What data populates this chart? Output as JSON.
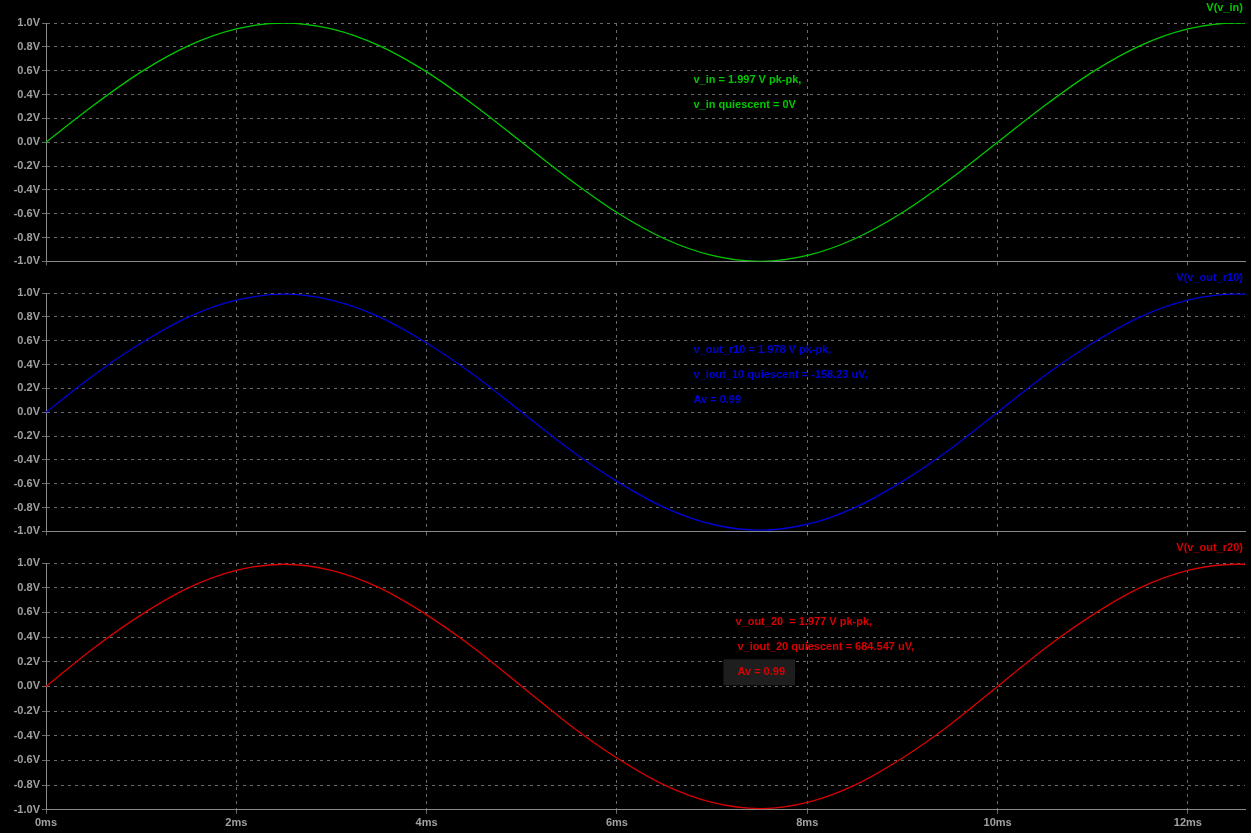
{
  "chart_data": [
    {
      "type": "line",
      "x": [
        0,
        0.5,
        1,
        1.5,
        2,
        2.5,
        3,
        3.5,
        4,
        4.5,
        5,
        5.5,
        6,
        6.5,
        7,
        7.5,
        8,
        8.5,
        9,
        9.5,
        10,
        10.5,
        11,
        11.5,
        12,
        12.5,
        12.6
      ],
      "series": [
        {
          "name": "V(v_in)",
          "color": "#00c800",
          "values": [
            0,
            0.31,
            0.59,
            0.81,
            0.95,
            1.0,
            0.95,
            0.81,
            0.59,
            0.31,
            0,
            -0.31,
            -0.59,
            -0.81,
            -0.95,
            -1.0,
            -0.95,
            -0.81,
            -0.59,
            -0.31,
            0,
            0.31,
            0.59,
            0.81,
            0.95,
            1.0,
            1.0
          ]
        }
      ],
      "xlim": [
        0,
        12.6
      ],
      "xticks": [
        {
          "value": 0,
          "label": null
        },
        {
          "value": 2,
          "label": null
        },
        {
          "value": 4,
          "label": null
        },
        {
          "value": 6,
          "label": null
        },
        {
          "value": 8,
          "label": null
        },
        {
          "value": 10,
          "label": null
        },
        {
          "value": 12,
          "label": null
        }
      ],
      "ylim": [
        -1,
        1
      ],
      "yticks": [
        {
          "value": -1,
          "label": "-1.0V"
        },
        {
          "value": -0.8,
          "label": "-0.8V"
        },
        {
          "value": -0.6,
          "label": "-0.6V"
        },
        {
          "value": -0.4,
          "label": "-0.4V"
        },
        {
          "value": -0.2,
          "label": "-0.2V"
        },
        {
          "value": 0,
          "label": "0.0V"
        },
        {
          "value": 0.2,
          "label": "0.2V"
        },
        {
          "value": 0.4,
          "label": "0.4V"
        },
        {
          "value": 0.6,
          "label": "0.6V"
        },
        {
          "value": 0.8,
          "label": "0.8V"
        },
        {
          "value": 1,
          "label": "1.0V"
        }
      ],
      "grid": true,
      "legend": "top right",
      "tick_labels": "y",
      "line_style": "solid",
      "marker": "none",
      "annotations": [
        "v_in = 1.997 V pk-pk,",
        "v_in quiescent = 0V"
      ]
    },
    {
      "type": "line",
      "x": [
        0,
        0.5,
        1,
        1.5,
        2,
        2.5,
        3,
        3.5,
        4,
        4.5,
        5,
        5.5,
        6,
        6.5,
        7,
        7.5,
        8,
        8.5,
        9,
        9.5,
        10,
        10.5,
        11,
        11.5,
        12,
        12.5,
        12.6
      ],
      "series": [
        {
          "name": "V(v_out_r10)",
          "color": "#0000d8",
          "values": [
            0,
            0.31,
            0.58,
            0.8,
            0.94,
            0.99,
            0.94,
            0.8,
            0.58,
            0.31,
            0,
            -0.31,
            -0.58,
            -0.8,
            -0.94,
            -0.99,
            -0.94,
            -0.8,
            -0.58,
            -0.31,
            0,
            0.31,
            0.58,
            0.8,
            0.94,
            0.99,
            0.99
          ]
        }
      ],
      "xlim": [
        0,
        12.6
      ],
      "xticks": [
        {
          "value": 0,
          "label": null
        },
        {
          "value": 2,
          "label": null
        },
        {
          "value": 4,
          "label": null
        },
        {
          "value": 6,
          "label": null
        },
        {
          "value": 8,
          "label": null
        },
        {
          "value": 10,
          "label": null
        },
        {
          "value": 12,
          "label": null
        }
      ],
      "ylim": [
        -1,
        1
      ],
      "yticks": [
        {
          "value": -1,
          "label": "-1.0V"
        },
        {
          "value": -0.8,
          "label": "-0.8V"
        },
        {
          "value": -0.6,
          "label": "-0.6V"
        },
        {
          "value": -0.4,
          "label": "-0.4V"
        },
        {
          "value": -0.2,
          "label": "-0.2V"
        },
        {
          "value": 0,
          "label": "0.0V"
        },
        {
          "value": 0.2,
          "label": "0.2V"
        },
        {
          "value": 0.4,
          "label": "0.4V"
        },
        {
          "value": 0.6,
          "label": "0.6V"
        },
        {
          "value": 0.8,
          "label": "0.8V"
        },
        {
          "value": 1,
          "label": "1.0V"
        }
      ],
      "grid": true,
      "legend": "top right",
      "tick_labels": "y",
      "line_style": "solid",
      "marker": "none",
      "annotations": [
        "v_out_r10 = 1.978 V pk-pk,",
        "v_iout_10 quiescent = -158.23 uV,",
        "Av = 0.99"
      ]
    },
    {
      "type": "line",
      "x": [
        0,
        0.5,
        1,
        1.5,
        2,
        2.5,
        3,
        3.5,
        4,
        4.5,
        5,
        5.5,
        6,
        6.5,
        7,
        7.5,
        8,
        8.5,
        9,
        9.5,
        10,
        10.5,
        11,
        11.5,
        12,
        12.5,
        12.6
      ],
      "series": [
        {
          "name": "V(v_out_r20)",
          "color": "#d80000",
          "values": [
            0,
            0.31,
            0.58,
            0.8,
            0.94,
            0.99,
            0.94,
            0.8,
            0.58,
            0.31,
            0,
            -0.31,
            -0.58,
            -0.8,
            -0.94,
            -0.99,
            -0.94,
            -0.8,
            -0.58,
            -0.31,
            0,
            0.31,
            0.58,
            0.8,
            0.94,
            0.99,
            0.99
          ]
        }
      ],
      "xlim": [
        0,
        12.6
      ],
      "xticks": [
        {
          "value": 0,
          "label": "0ms"
        },
        {
          "value": 2,
          "label": "2ms"
        },
        {
          "value": 4,
          "label": "4ms"
        },
        {
          "value": 6,
          "label": "6ms"
        },
        {
          "value": 8,
          "label": "8ms"
        },
        {
          "value": 10,
          "label": "10ms"
        },
        {
          "value": 12,
          "label": "12ms"
        }
      ],
      "ylim": [
        -1,
        1
      ],
      "yticks": [
        {
          "value": -1,
          "label": "-1.0V"
        },
        {
          "value": -0.8,
          "label": "-0.8V"
        },
        {
          "value": -0.6,
          "label": "-0.6V"
        },
        {
          "value": -0.4,
          "label": "-0.4V"
        },
        {
          "value": -0.2,
          "label": "-0.2V"
        },
        {
          "value": 0,
          "label": "0.0V"
        },
        {
          "value": 0.2,
          "label": "0.2V"
        },
        {
          "value": 0.4,
          "label": "0.4V"
        },
        {
          "value": 0.6,
          "label": "0.6V"
        },
        {
          "value": 0.8,
          "label": "0.8V"
        },
        {
          "value": 1,
          "label": "1.0V"
        }
      ],
      "grid": true,
      "legend": "top right",
      "line_style": "solid",
      "marker": "none",
      "annotations": [
        "v_out_20  = 1.977 V pk-pk,",
        "v_iout_20 quiescent = 684.547 uV,",
        "Av = 0.99"
      ]
    }
  ]
}
